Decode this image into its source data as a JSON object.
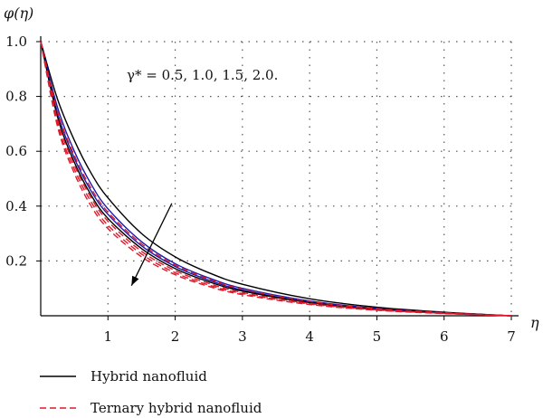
{
  "chart_data": {
    "type": "line",
    "xlabel": "η",
    "ylabel": "φ(η)",
    "xlim": [
      0,
      7
    ],
    "ylim": [
      0,
      1
    ],
    "x_ticks": [
      "1",
      "2",
      "3",
      "4",
      "5",
      "6",
      "7"
    ],
    "y_ticks": [
      "0.2",
      "0.4",
      "0.6",
      "0.8",
      "1.0"
    ],
    "grid": "dotted",
    "annotation": "γ* = 0.5, 1.0, 1.5, 2.0.",
    "legend_position": "bottom-left",
    "legend": [
      {
        "label": "Hybrid nanofluid",
        "color": "#000000",
        "style": "solid"
      },
      {
        "label": "Ternary hybrid nanofluid",
        "color": "#e0182a",
        "style": "dashed"
      }
    ],
    "series": [
      {
        "group": "hybrid",
        "color": "#000000",
        "style": "solid",
        "x": [
          0,
          0.25,
          0.5,
          0.75,
          1,
          1.5,
          2,
          2.5,
          3,
          4,
          5,
          6,
          7
        ],
        "y": [
          1.0,
          0.79,
          0.64,
          0.52,
          0.43,
          0.3,
          0.215,
          0.157,
          0.115,
          0.062,
          0.031,
          0.013,
          0.0
        ]
      },
      {
        "group": "hybrid",
        "color": "#1a1aa8",
        "style": "solid",
        "x": [
          0,
          0.25,
          0.5,
          0.75,
          1,
          1.5,
          2,
          2.5,
          3,
          4,
          5,
          6,
          7
        ],
        "y": [
          1.0,
          0.76,
          0.6,
          0.48,
          0.39,
          0.27,
          0.19,
          0.138,
          0.1,
          0.054,
          0.027,
          0.011,
          0.0
        ]
      },
      {
        "group": "hybrid",
        "color": "#1a1aa8",
        "style": "solid",
        "x": [
          0,
          0.25,
          0.5,
          0.75,
          1,
          1.5,
          2,
          2.5,
          3,
          4,
          5,
          6,
          7
        ],
        "y": [
          1.0,
          0.74,
          0.575,
          0.455,
          0.37,
          0.255,
          0.18,
          0.13,
          0.094,
          0.05,
          0.025,
          0.01,
          0.0
        ]
      },
      {
        "group": "hybrid",
        "color": "#000000",
        "style": "solid",
        "x": [
          0,
          0.25,
          0.5,
          0.75,
          1,
          1.5,
          2,
          2.5,
          3,
          4,
          5,
          6,
          7
        ],
        "y": [
          1.0,
          0.725,
          0.56,
          0.44,
          0.355,
          0.245,
          0.172,
          0.124,
          0.09,
          0.048,
          0.024,
          0.01,
          0.0
        ]
      },
      {
        "group": "ternary",
        "color": "#e0182a",
        "style": "dashed",
        "x": [
          0,
          0.25,
          0.5,
          0.75,
          1,
          1.5,
          2,
          2.5,
          3,
          4,
          5,
          6,
          7
        ],
        "y": [
          1.0,
          0.745,
          0.585,
          0.465,
          0.378,
          0.262,
          0.185,
          0.134,
          0.097,
          0.052,
          0.026,
          0.011,
          0.0
        ]
      },
      {
        "group": "ternary",
        "color": "#e0182a",
        "style": "dashed",
        "x": [
          0,
          0.25,
          0.5,
          0.75,
          1,
          1.5,
          2,
          2.5,
          3,
          4,
          5,
          6,
          7
        ],
        "y": [
          1.0,
          0.715,
          0.55,
          0.43,
          0.345,
          0.235,
          0.165,
          0.118,
          0.085,
          0.045,
          0.022,
          0.009,
          0.0
        ]
      },
      {
        "group": "ternary",
        "color": "#e0182a",
        "style": "dashed",
        "x": [
          0,
          0.25,
          0.5,
          0.75,
          1,
          1.5,
          2,
          2.5,
          3,
          4,
          5,
          6,
          7
        ],
        "y": [
          1.0,
          0.7,
          0.535,
          0.415,
          0.33,
          0.225,
          0.157,
          0.112,
          0.081,
          0.043,
          0.021,
          0.009,
          0.0
        ]
      },
      {
        "group": "ternary",
        "color": "#e0182a",
        "style": "dashed",
        "x": [
          0,
          0.25,
          0.5,
          0.75,
          1,
          1.5,
          2,
          2.5,
          3,
          4,
          5,
          6,
          7
        ],
        "y": [
          1.0,
          0.69,
          0.52,
          0.4,
          0.318,
          0.215,
          0.15,
          0.107,
          0.077,
          0.041,
          0.02,
          0.008,
          0.0
        ]
      }
    ],
    "arrow": {
      "from": [
        1.95,
        0.41
      ],
      "to": [
        1.35,
        0.11
      ],
      "color": "#000000"
    }
  }
}
